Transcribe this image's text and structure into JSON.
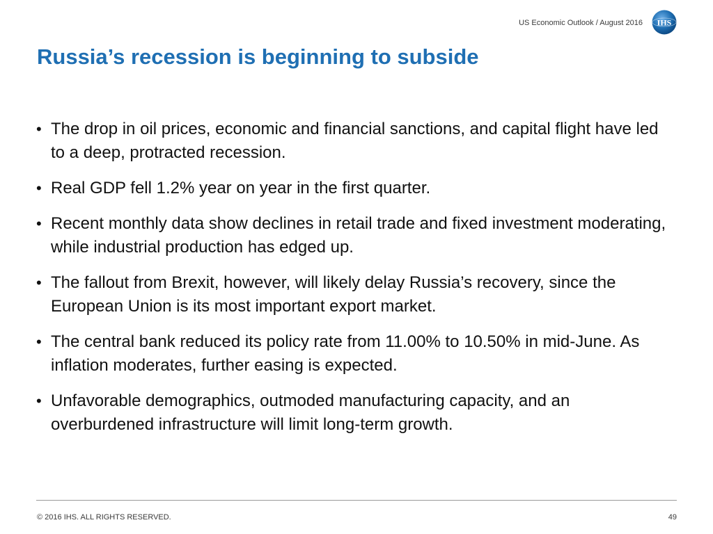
{
  "header": {
    "text": "US Economic Outlook / August 2016",
    "logo_text": "IHS",
    "logo_color": "#1f6fb3"
  },
  "title": "Russia’s recession is beginning to subside",
  "bullets": [
    "The drop in oil prices, economic and financial sanctions, and capital flight have led to a deep, protracted recession.",
    "Real GDP fell 1.2% year on year in the first quarter.",
    "Recent monthly data show declines in retail trade and fixed investment moderating, while industrial production has edged up.",
    "The fallout from Brexit, however, will likely delay Russia’s recovery, since the European Union is its most important export market.",
    "The central bank reduced its policy rate from 11.00% to 10.50% in mid-June. As inflation moderates, further easing is expected.",
    "Unfavorable demographics, outmoded manufacturing capacity, and an overburdened infrastructure will limit long-term growth."
  ],
  "footer": {
    "copyright": "© 2016 IHS. ALL RIGHTS RESERVED.",
    "page_number": "49"
  },
  "colors": {
    "title": "#1f6fb3",
    "body_text": "#111111",
    "divider": "#9a9a9a"
  }
}
